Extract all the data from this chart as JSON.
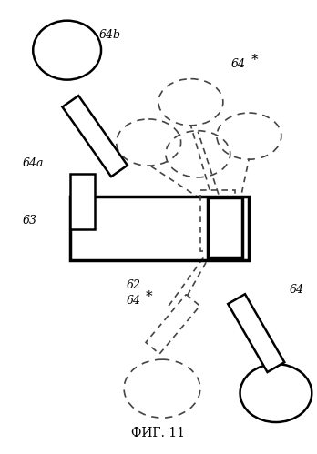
{
  "title": "ФИГ. 11",
  "bg_color": "#ffffff",
  "line_color": "#000000",
  "dashed_color": "#444444",
  "figsize": [
    3.48,
    4.99
  ],
  "dpi": 100
}
